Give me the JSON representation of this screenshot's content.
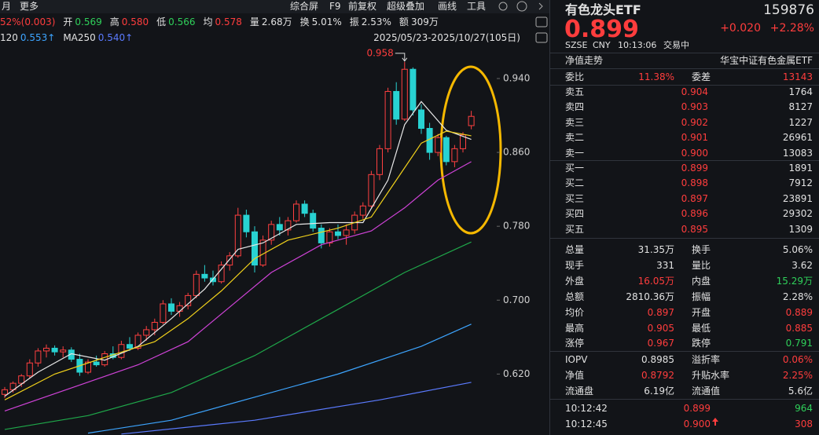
{
  "toolbar": {
    "left": [
      "月",
      "更多"
    ],
    "right": [
      "综合屏",
      "F9",
      "前复权",
      "超级叠加",
      "画线",
      "工具"
    ]
  },
  "quote_bar": {
    "change": "52%(0.003)",
    "items": [
      {
        "label": "开",
        "value": "0.569",
        "tone": "down"
      },
      {
        "label": "高",
        "value": "0.580",
        "tone": "up"
      },
      {
        "label": "低",
        "value": "0.566",
        "tone": "down"
      },
      {
        "label": "均",
        "value": "0.578",
        "tone": "up"
      },
      {
        "label": "量",
        "value": "2.68万",
        "tone": "flat"
      },
      {
        "label": "换",
        "value": "5.01%",
        "tone": "flat"
      },
      {
        "label": "振",
        "value": "2.53%",
        "tone": "flat"
      },
      {
        "label": "额",
        "value": "309万",
        "tone": "flat"
      }
    ]
  },
  "ma_legend": [
    {
      "label": "120",
      "value": "0.553↑",
      "color": "#3da5ff"
    },
    {
      "label": "MA250",
      "value": "0.540↑",
      "color": "#5b7bff"
    }
  ],
  "date_range": "2025/05/23-2025/10/27(105日)",
  "chart": {
    "type": "candlestick",
    "up_color": "#ff4040",
    "down_color": "#28d2d2",
    "ylim": [
      0.554,
      0.974
    ],
    "yticks": [
      {
        "value": 0.62,
        "label": "0.620"
      },
      {
        "value": 0.7,
        "label": "0.700"
      },
      {
        "value": 0.78,
        "label": "0.780"
      },
      {
        "value": 0.86,
        "label": "0.860"
      },
      {
        "value": 0.94,
        "label": "0.940"
      }
    ],
    "peak_annotation": "0.958",
    "candles": [
      [
        0.598,
        0.606,
        0.594,
        0.603
      ],
      [
        0.603,
        0.612,
        0.6,
        0.61
      ],
      [
        0.61,
        0.62,
        0.606,
        0.618
      ],
      [
        0.618,
        0.636,
        0.615,
        0.632
      ],
      [
        0.632,
        0.648,
        0.628,
        0.645
      ],
      [
        0.645,
        0.652,
        0.638,
        0.648
      ],
      [
        0.648,
        0.651,
        0.64,
        0.644
      ],
      [
        0.644,
        0.65,
        0.638,
        0.646
      ],
      [
        0.646,
        0.649,
        0.633,
        0.636
      ],
      [
        0.636,
        0.642,
        0.618,
        0.622
      ],
      [
        0.622,
        0.636,
        0.62,
        0.633
      ],
      [
        0.633,
        0.64,
        0.628,
        0.63
      ],
      [
        0.63,
        0.645,
        0.628,
        0.642
      ],
      [
        0.642,
        0.65,
        0.636,
        0.638
      ],
      [
        0.638,
        0.656,
        0.636,
        0.652
      ],
      [
        0.652,
        0.66,
        0.645,
        0.648
      ],
      [
        0.648,
        0.665,
        0.646,
        0.662
      ],
      [
        0.662,
        0.672,
        0.656,
        0.668
      ],
      [
        0.668,
        0.68,
        0.662,
        0.676
      ],
      [
        0.676,
        0.7,
        0.674,
        0.696
      ],
      [
        0.696,
        0.702,
        0.684,
        0.688
      ],
      [
        0.688,
        0.698,
        0.682,
        0.694
      ],
      [
        0.694,
        0.708,
        0.69,
        0.705
      ],
      [
        0.705,
        0.732,
        0.702,
        0.728
      ],
      [
        0.728,
        0.738,
        0.72,
        0.724
      ],
      [
        0.724,
        0.732,
        0.716,
        0.72
      ],
      [
        0.72,
        0.742,
        0.718,
        0.738
      ],
      [
        0.738,
        0.752,
        0.732,
        0.748
      ],
      [
        0.748,
        0.8,
        0.746,
        0.792
      ],
      [
        0.792,
        0.798,
        0.768,
        0.774
      ],
      [
        0.774,
        0.78,
        0.73,
        0.738
      ],
      [
        0.738,
        0.77,
        0.736,
        0.765
      ],
      [
        0.765,
        0.786,
        0.76,
        0.782
      ],
      [
        0.782,
        0.79,
        0.77,
        0.776
      ],
      [
        0.776,
        0.79,
        0.77,
        0.786
      ],
      [
        0.786,
        0.808,
        0.784,
        0.804
      ],
      [
        0.804,
        0.808,
        0.79,
        0.794
      ],
      [
        0.794,
        0.798,
        0.774,
        0.778
      ],
      [
        0.778,
        0.782,
        0.756,
        0.762
      ],
      [
        0.762,
        0.778,
        0.758,
        0.774
      ],
      [
        0.774,
        0.782,
        0.766,
        0.77
      ],
      [
        0.77,
        0.782,
        0.76,
        0.776
      ],
      [
        0.776,
        0.796,
        0.772,
        0.792
      ],
      [
        0.792,
        0.806,
        0.788,
        0.802
      ],
      [
        0.802,
        0.84,
        0.8,
        0.836
      ],
      [
        0.836,
        0.868,
        0.83,
        0.864
      ],
      [
        0.864,
        0.93,
        0.86,
        0.926
      ],
      [
        0.926,
        0.936,
        0.89,
        0.896
      ],
      [
        0.896,
        0.958,
        0.894,
        0.95
      ],
      [
        0.95,
        0.952,
        0.9,
        0.906
      ],
      [
        0.906,
        0.912,
        0.88,
        0.886
      ],
      [
        0.886,
        0.892,
        0.852,
        0.86
      ],
      [
        0.86,
        0.88,
        0.856,
        0.876
      ],
      [
        0.876,
        0.878,
        0.846,
        0.85
      ],
      [
        0.85,
        0.868,
        0.844,
        0.864
      ],
      [
        0.864,
        0.882,
        0.86,
        0.879
      ],
      [
        0.889,
        0.905,
        0.885,
        0.899
      ]
    ],
    "ma_lines": [
      {
        "color": "#e8e8e8",
        "x": [
          0,
          4,
          8,
          12,
          16,
          20,
          24,
          28,
          31,
          35,
          39,
          43,
          46,
          48,
          50,
          53,
          56
        ],
        "values": [
          0.596,
          0.622,
          0.642,
          0.635,
          0.65,
          0.68,
          0.712,
          0.755,
          0.762,
          0.782,
          0.784,
          0.784,
          0.83,
          0.89,
          0.915,
          0.884,
          0.874
        ]
      },
      {
        "color": "#f2d21b",
        "x": [
          0,
          6,
          12,
          18,
          22,
          26,
          30,
          34,
          40,
          44,
          47,
          50,
          53,
          56
        ],
        "values": [
          0.592,
          0.62,
          0.638,
          0.655,
          0.68,
          0.71,
          0.745,
          0.765,
          0.778,
          0.79,
          0.83,
          0.87,
          0.883,
          0.878
        ]
      },
      {
        "color": "#d043d8",
        "x": [
          0,
          8,
          16,
          22,
          28,
          32,
          38,
          44,
          48,
          52,
          56
        ],
        "values": [
          0.58,
          0.605,
          0.63,
          0.655,
          0.7,
          0.73,
          0.76,
          0.775,
          0.8,
          0.83,
          0.85
        ]
      },
      {
        "color": "#1fa84a",
        "x": [
          0,
          10,
          20,
          30,
          40,
          48,
          56
        ],
        "values": [
          0.56,
          0.575,
          0.6,
          0.64,
          0.69,
          0.73,
          0.763
        ]
      },
      {
        "color": "#3da5ff",
        "x": [
          10,
          20,
          30,
          40,
          50,
          56
        ],
        "values": [
          0.556,
          0.57,
          0.595,
          0.62,
          0.65,
          0.674
        ]
      },
      {
        "color": "#5b7bff",
        "x": [
          14,
          30,
          45,
          56
        ],
        "values": [
          0.555,
          0.57,
          0.592,
          0.611
        ]
      }
    ]
  },
  "quote": {
    "name": "有色龙头ETF",
    "code": "159876",
    "price": "0.899",
    "change": "+0.020",
    "pct": "+2.28%",
    "exchange": "SZSE",
    "currency": "CNY",
    "time": "10:13:06",
    "status": "交易中"
  },
  "tabs": {
    "left": "净值走势",
    "right": "华宝中证有色金属ETF"
  },
  "order_ratio": [
    {
      "label": "委比",
      "value": "11.38%",
      "tone": "up"
    },
    {
      "label": "委差",
      "value": "13143",
      "tone": "up"
    }
  ],
  "asks": [
    {
      "label": "卖五",
      "price": "0.904",
      "volume": "1764"
    },
    {
      "label": "卖四",
      "price": "0.903",
      "volume": "8127"
    },
    {
      "label": "卖三",
      "price": "0.902",
      "volume": "1227"
    },
    {
      "label": "卖二",
      "price": "0.901",
      "volume": "26961"
    },
    {
      "label": "卖一",
      "price": "0.900",
      "volume": "13083"
    }
  ],
  "bids": [
    {
      "label": "买一",
      "price": "0.899",
      "volume": "1891"
    },
    {
      "label": "买二",
      "price": "0.898",
      "volume": "7912"
    },
    {
      "label": "买三",
      "price": "0.897",
      "volume": "23891"
    },
    {
      "label": "买四",
      "price": "0.896",
      "volume": "29302"
    },
    {
      "label": "买五",
      "price": "0.895",
      "volume": "1309"
    }
  ],
  "stats": [
    [
      {
        "label": "总量",
        "value": "31.35万",
        "tone": "flat"
      },
      {
        "label": "换手",
        "value": "5.06%",
        "tone": "flat"
      }
    ],
    [
      {
        "label": "现手",
        "value": "331",
        "tone": "flat"
      },
      {
        "label": "量比",
        "value": "3.62",
        "tone": "flat"
      }
    ],
    [
      {
        "label": "外盘",
        "value": "16.05万",
        "tone": "up"
      },
      {
        "label": "内盘",
        "value": "15.29万",
        "tone": "down"
      }
    ],
    [
      {
        "label": "总额",
        "value": "2810.36万",
        "tone": "flat"
      },
      {
        "label": "振幅",
        "value": "2.28%",
        "tone": "flat"
      }
    ],
    [
      {
        "label": "均价",
        "value": "0.897",
        "tone": "up"
      },
      {
        "label": "开盘",
        "value": "0.889",
        "tone": "up"
      }
    ],
    [
      {
        "label": "最高",
        "value": "0.905",
        "tone": "up"
      },
      {
        "label": "最低",
        "value": "0.885",
        "tone": "up"
      }
    ],
    [
      {
        "label": "涨停",
        "value": "0.967",
        "tone": "up"
      },
      {
        "label": "跌停",
        "value": "0.791",
        "tone": "down"
      }
    ]
  ],
  "fund_stats": [
    [
      {
        "label": "IOPV",
        "value": "0.8985",
        "tone": "flat"
      },
      {
        "label": "溢折率",
        "value": "0.06%",
        "tone": "up"
      }
    ],
    [
      {
        "label": "净值",
        "value": "0.8792",
        "tone": "up"
      },
      {
        "label": "升贴水率",
        "value": "2.25%",
        "tone": "up"
      }
    ],
    [
      {
        "label": "流通盘",
        "value": "6.19亿",
        "tone": "flat"
      },
      {
        "label": "流通值",
        "value": "5.6亿",
        "tone": "flat"
      }
    ]
  ],
  "trades": [
    {
      "time": "10:12:42",
      "price": "0.899",
      "volume": "964",
      "tone": "down"
    },
    {
      "time": "10:12:45",
      "price": "0.900",
      "volume": "308",
      "tone": "up"
    }
  ]
}
